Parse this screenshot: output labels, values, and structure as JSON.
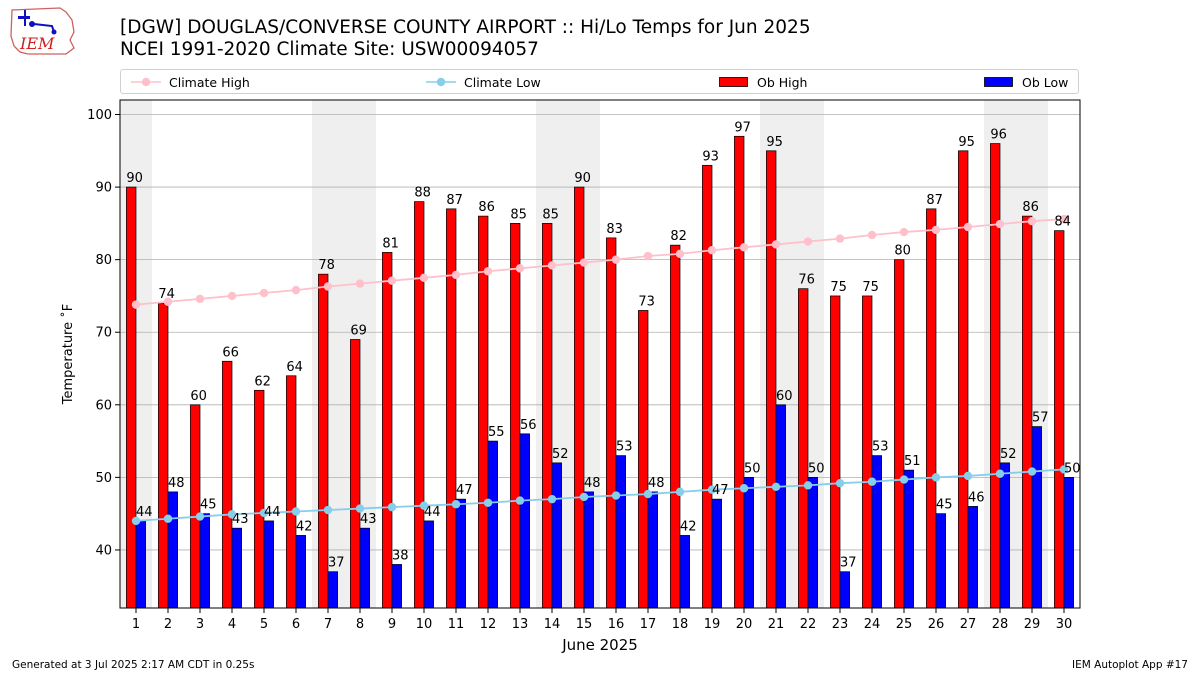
{
  "header": {
    "logo_text": "IEM",
    "title_line1": "[DGW] DOUGLAS/CONVERSE COUNTY AIRPORT :: Hi/Lo Temps for Jun 2025",
    "title_line2": "NCEI 1991-2020 Climate Site: USW00094057"
  },
  "footer": {
    "left": "Generated at 3 Jul 2025 2:17 AM CDT in 0.25s",
    "right": "IEM Autoplot App #17"
  },
  "chart_data": {
    "type": "bar",
    "xlabel": "June 2025",
    "ylabel": "Temperature ˚F",
    "ylim": [
      32,
      102
    ],
    "yticks": [
      40,
      50,
      60,
      70,
      80,
      90,
      100
    ],
    "grid": true,
    "legend_position": "top",
    "categories": [
      "1",
      "2",
      "3",
      "4",
      "5",
      "6",
      "7",
      "8",
      "9",
      "10",
      "11",
      "12",
      "13",
      "14",
      "15",
      "16",
      "17",
      "18",
      "19",
      "20",
      "21",
      "22",
      "23",
      "24",
      "25",
      "26",
      "27",
      "28",
      "29",
      "30"
    ],
    "weekend_days": [
      1,
      7,
      8,
      14,
      15,
      21,
      22,
      28,
      29
    ],
    "series": [
      {
        "name": "Ob High",
        "kind": "bar",
        "color": "#ff0000",
        "values": [
          90,
          74,
          60,
          66,
          62,
          64,
          78,
          69,
          81,
          88,
          87,
          86,
          85,
          85,
          90,
          83,
          73,
          82,
          93,
          97,
          95,
          76,
          75,
          75,
          80,
          87,
          95,
          96,
          86,
          84
        ]
      },
      {
        "name": "Ob Low",
        "kind": "bar",
        "color": "#0000ff",
        "values": [
          44,
          48,
          45,
          43,
          44,
          42,
          37,
          43,
          38,
          44,
          47,
          55,
          56,
          52,
          48,
          53,
          48,
          42,
          47,
          50,
          60,
          50,
          37,
          53,
          51,
          45,
          46,
          52,
          57,
          50
        ]
      },
      {
        "name": "Climate High",
        "kind": "line",
        "color": "#ffc0cb",
        "values": [
          73.8,
          74.2,
          74.6,
          75.0,
          75.4,
          75.8,
          76.3,
          76.7,
          77.1,
          77.5,
          77.9,
          78.4,
          78.8,
          79.2,
          79.6,
          80.0,
          80.5,
          80.8,
          81.3,
          81.7,
          82.1,
          82.5,
          82.9,
          83.4,
          83.8,
          84.1,
          84.5,
          84.9,
          85.3,
          85.6
        ]
      },
      {
        "name": "Climate Low",
        "kind": "line",
        "color": "#87ceeb",
        "values": [
          44.0,
          44.3,
          44.6,
          44.9,
          45.1,
          45.3,
          45.5,
          45.7,
          45.9,
          46.1,
          46.3,
          46.5,
          46.8,
          47.0,
          47.3,
          47.5,
          47.7,
          48.0,
          48.3,
          48.5,
          48.7,
          48.9,
          49.2,
          49.4,
          49.7,
          50.0,
          50.2,
          50.5,
          50.8,
          51.1
        ]
      }
    ]
  }
}
